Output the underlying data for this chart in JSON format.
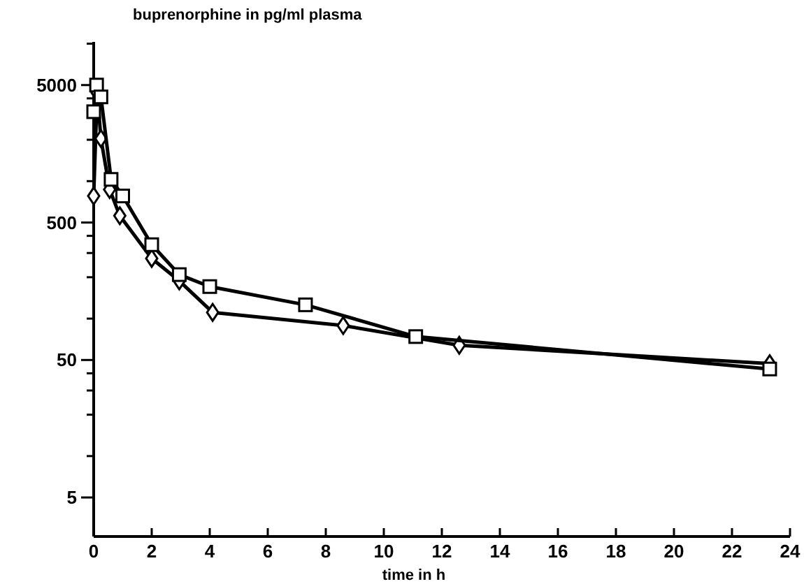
{
  "chart_data": {
    "type": "line",
    "title": "buprenorphine in pg/ml plasma",
    "xlabel": "time in h",
    "log": "y",
    "grid": false,
    "xlim": [
      0,
      24
    ],
    "xticks": [
      0,
      2,
      4,
      6,
      8,
      10,
      12,
      14,
      16,
      18,
      20,
      22,
      24
    ],
    "ylim": [
      2.6,
      10300
    ],
    "yticks": [
      5,
      {
        "value": 10,
        "label": null
      },
      {
        "value": 20,
        "label": null
      },
      {
        "value": 30,
        "label": null
      },
      {
        "value": 40,
        "label": null
      },
      50,
      {
        "value": 100,
        "label": null
      },
      {
        "value": 200,
        "label": null
      },
      {
        "value": 300,
        "label": null
      },
      {
        "value": 400,
        "label": null
      },
      500,
      {
        "value": 1000,
        "label": null
      },
      {
        "value": 2000,
        "label": null
      },
      {
        "value": 3000,
        "label": null
      },
      {
        "value": 4000,
        "label": null
      },
      5000,
      {
        "value": 10000,
        "label": null
      }
    ],
    "series": [
      {
        "color": "#000000",
        "marker": "square",
        "x": [
          0,
          0.1,
          0.25,
          0.6,
          1.0,
          2.0,
          2.95,
          4.0,
          7.3,
          11.1,
          23.3
        ],
        "values": [
          3200,
          5000,
          4100,
          1030,
          780,
          345,
          209,
          171,
          126,
          74,
          43
        ]
      },
      {
        "color": "#000000",
        "marker": "diamond",
        "x": [
          0,
          0.12,
          0.25,
          0.55,
          0.9,
          2.0,
          2.95,
          4.1,
          8.6,
          12.6,
          23.3
        ],
        "values": [
          780,
          4400,
          2040,
          870,
          560,
          274,
          188,
          111,
          89,
          64,
          47
        ]
      }
    ]
  }
}
